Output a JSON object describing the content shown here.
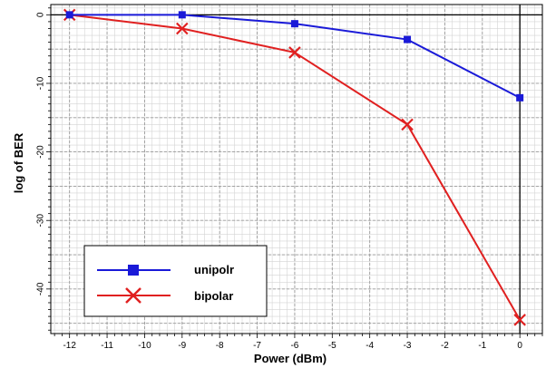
{
  "chart_data": {
    "type": "line",
    "title": "",
    "xlabel": "Power (dBm)",
    "ylabel": "log of BER",
    "xlim": [
      -12.5,
      0.6
    ],
    "ylim": [
      -46.5,
      1.5
    ],
    "x_ticks": [
      -12,
      -11,
      -10,
      -9,
      -8,
      -7,
      -6,
      -5,
      -4,
      -3,
      -2,
      -1,
      0
    ],
    "x_tick_labels": [
      "-12",
      "-11",
      "-10",
      "-9",
      "-8",
      "-7",
      "-6",
      "-5",
      "-4",
      "-3",
      "-2",
      "-1",
      "0"
    ],
    "y_ticks": [
      0,
      -10,
      -20,
      -30,
      -40
    ],
    "y_tick_labels": [
      "0",
      "-10",
      "-20",
      "-30",
      "-40"
    ],
    "grid": true,
    "legend_position": "bottom-left",
    "series": [
      {
        "name": "unipolr",
        "color": "#1a1ad8",
        "marker": "square",
        "x": [
          -12,
          -9,
          -6,
          -3,
          0
        ],
        "y": [
          0,
          0,
          -1.3,
          -3.6,
          -12.1
        ]
      },
      {
        "name": "bipolar",
        "color": "#e02020",
        "marker": "x",
        "x": [
          -12,
          -9,
          -6,
          -3,
          0
        ],
        "y": [
          0,
          -2,
          -5.5,
          -16,
          -44.5
        ]
      }
    ]
  }
}
